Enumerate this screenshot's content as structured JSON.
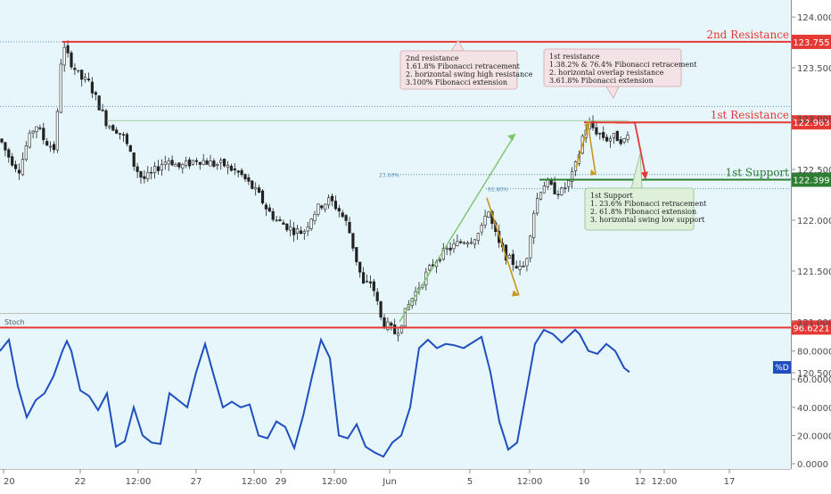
{
  "chart_data": [
    {
      "type": "candlestick",
      "title": "",
      "y_ticks": [
        "124.000",
        "123.500",
        "123.000",
        "122.500",
        "122.000",
        "121.500",
        "121.000",
        "120.500"
      ],
      "ylim": [
        120.38,
        124.28
      ],
      "x_ticks": [
        "20",
        "22",
        "12:00",
        "27",
        "12:00",
        "29",
        "12:00",
        "Jun",
        "5",
        "12:00",
        "10",
        "12",
        "12:00",
        "17"
      ],
      "approx_close_path": [
        [
          0,
          122.8
        ],
        [
          8,
          122.65
        ],
        [
          16,
          122.55
        ],
        [
          22,
          122.5
        ],
        [
          30,
          122.75
        ],
        [
          40,
          122.95
        ],
        [
          50,
          122.78
        ],
        [
          62,
          122.7
        ],
        [
          68,
          123.55
        ],
        [
          72,
          123.68
        ],
        [
          80,
          123.55
        ],
        [
          90,
          123.4
        ],
        [
          100,
          123.35
        ],
        [
          110,
          123.15
        ],
        [
          120,
          122.95
        ],
        [
          130,
          122.9
        ],
        [
          140,
          122.8
        ],
        [
          150,
          122.55
        ],
        [
          160,
          122.4
        ],
        [
          170,
          122.45
        ],
        [
          180,
          122.55
        ],
        [
          190,
          122.6
        ],
        [
          200,
          122.52
        ],
        [
          210,
          122.55
        ],
        [
          220,
          122.6
        ],
        [
          230,
          122.58
        ],
        [
          240,
          122.55
        ],
        [
          250,
          122.55
        ],
        [
          260,
          122.5
        ],
        [
          270,
          122.45
        ],
        [
          280,
          122.35
        ],
        [
          290,
          122.25
        ],
        [
          300,
          122.1
        ],
        [
          310,
          122.0
        ],
        [
          320,
          121.95
        ],
        [
          330,
          121.9
        ],
        [
          340,
          121.88
        ],
        [
          350,
          122.05
        ],
        [
          360,
          122.15
        ],
        [
          370,
          122.2
        ],
        [
          380,
          122.1
        ],
        [
          390,
          121.95
        ],
        [
          400,
          121.6
        ],
        [
          408,
          121.35
        ],
        [
          415,
          121.4
        ],
        [
          420,
          121.3
        ],
        [
          428,
          121.0
        ],
        [
          436,
          120.95
        ],
        [
          444,
          120.88
        ],
        [
          450,
          121.0
        ],
        [
          460,
          121.2
        ],
        [
          470,
          121.35
        ],
        [
          480,
          121.5
        ],
        [
          490,
          121.62
        ],
        [
          500,
          121.7
        ],
        [
          510,
          121.75
        ],
        [
          520,
          121.8
        ],
        [
          530,
          121.82
        ],
        [
          540,
          121.9
        ],
        [
          546,
          122.15
        ],
        [
          552,
          121.95
        ],
        [
          560,
          121.75
        ],
        [
          570,
          121.62
        ],
        [
          580,
          121.55
        ],
        [
          585,
          121.5
        ],
        [
          590,
          121.6
        ],
        [
          595,
          121.9
        ],
        [
          600,
          122.15
        ],
        [
          606,
          122.3
        ],
        [
          612,
          122.38
        ],
        [
          620,
          122.3
        ],
        [
          630,
          122.28
        ],
        [
          640,
          122.4
        ],
        [
          648,
          122.6
        ],
        [
          654,
          122.85
        ],
        [
          660,
          122.95
        ],
        [
          666,
          122.9
        ],
        [
          672,
          122.85
        ],
        [
          680,
          122.8
        ],
        [
          690,
          122.82
        ],
        [
          700,
          122.78
        ],
        [
          706,
          122.85
        ]
      ],
      "levels": [
        {
          "name": "2nd Resistance",
          "value": "123.755",
          "y": 123.755,
          "color": "#e53935"
        },
        {
          "name": "1st Resistance",
          "value": "122.963",
          "y": 122.963,
          "color": "#e53935"
        },
        {
          "name": "1st Support",
          "value": "122.399",
          "y": 122.399,
          "color": "#2e7d32"
        }
      ],
      "fib_labels": [
        "23.6%",
        "61.80%",
        "23.60%"
      ],
      "annotations": {
        "resistance2": [
          "2nd resistance",
          "1.61.8% Fibonacci retracement",
          "2. horizontal swing high resistance",
          "3.100% Fibonacci extension"
        ],
        "resistance1": [
          "1st resistance",
          "1.38.2% & 76.4% Fibonacci retracement",
          "2. horizontal overlap resistance",
          "3.61.8% Fibonacci extension"
        ],
        "support1": [
          "1st Support",
          "1. 23.6% Fibonacci retracement",
          "2. 61.8% Fibonacci extension",
          "3. horizontal swing low support"
        ]
      },
      "colors": {
        "bull": "#ffffff",
        "bear": "#222222",
        "background": "#e6f6fb"
      }
    },
    {
      "type": "line",
      "title": "Stoch",
      "series_label": "%D",
      "y_ticks": [
        "80.0000",
        "60.0000",
        "40.0000",
        "20.0000",
        "0.0000"
      ],
      "ylim": [
        -2,
        106
      ],
      "level": {
        "value": "96.6221",
        "y": 96.6221,
        "color": "#e53935"
      },
      "x": [
        0,
        10,
        20,
        30,
        40,
        50,
        60,
        70,
        75,
        80,
        90,
        100,
        110,
        120,
        130,
        140,
        150,
        160,
        170,
        180,
        190,
        200,
        210,
        220,
        230,
        240,
        250,
        260,
        270,
        280,
        290,
        300,
        310,
        320,
        330,
        340,
        350,
        360,
        370,
        380,
        390,
        400,
        410,
        420,
        430,
        440,
        450,
        460,
        470,
        480,
        490,
        500,
        510,
        520,
        530,
        540,
        550,
        560,
        570,
        580,
        590,
        600,
        610,
        620,
        630,
        640,
        645,
        650,
        660,
        670,
        680,
        690,
        700,
        706
      ],
      "values": [
        80,
        88,
        55,
        33,
        45,
        50,
        62,
        80,
        87,
        80,
        52,
        48,
        38,
        50,
        12,
        16,
        40,
        20,
        15,
        14,
        50,
        45,
        40,
        65,
        85,
        62,
        40,
        44,
        40,
        42,
        20,
        18,
        30,
        26,
        11,
        34,
        62,
        88,
        75,
        20,
        18,
        28,
        12,
        8,
        5,
        15,
        20,
        40,
        82,
        88,
        82,
        85,
        84,
        82,
        86,
        90,
        65,
        30,
        10,
        15,
        50,
        85,
        95,
        92,
        86,
        92,
        95,
        92,
        80,
        78,
        85,
        80,
        68,
        65
      ],
      "color": "#1f4fbf"
    }
  ]
}
